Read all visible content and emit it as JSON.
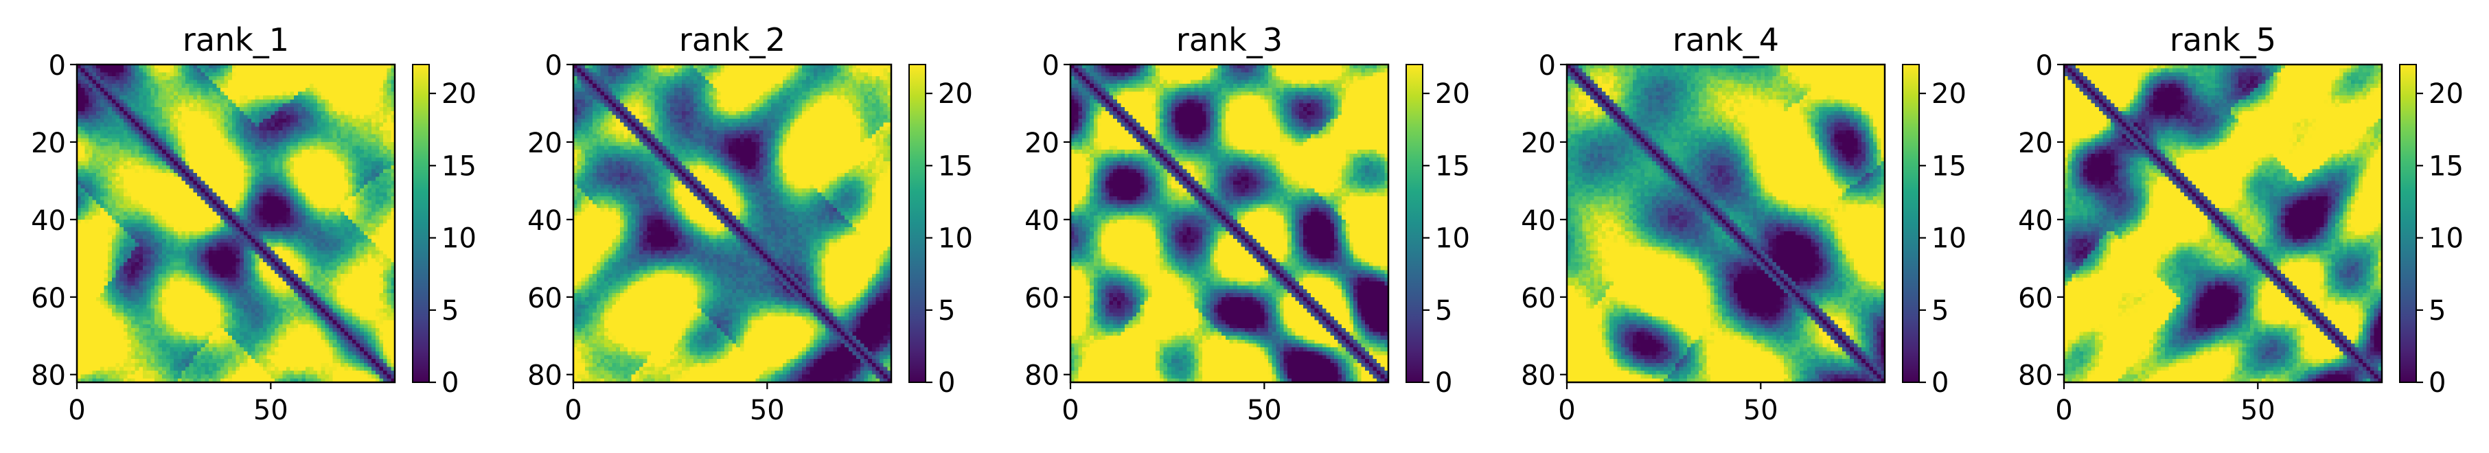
{
  "chart_data": [
    {
      "type": "heatmap",
      "title": "rank_1",
      "matrix_size": 82,
      "xlim": [
        0,
        82
      ],
      "ylim": [
        82,
        0
      ],
      "xticks": [
        0,
        50
      ],
      "yticks": [
        0,
        20,
        40,
        60,
        80
      ],
      "colorbar": {
        "min": 0,
        "max": 22,
        "ticks": [
          0,
          5,
          10,
          15,
          20
        ],
        "colormap": "viridis"
      },
      "grid": false,
      "seed": 11
    },
    {
      "type": "heatmap",
      "title": "rank_2",
      "matrix_size": 82,
      "xlim": [
        0,
        82
      ],
      "ylim": [
        82,
        0
      ],
      "xticks": [
        0,
        50
      ],
      "yticks": [
        0,
        20,
        40,
        60,
        80
      ],
      "colorbar": {
        "min": 0,
        "max": 22,
        "ticks": [
          0,
          5,
          10,
          15,
          20
        ],
        "colormap": "viridis"
      },
      "grid": false,
      "seed": 12
    },
    {
      "type": "heatmap",
      "title": "rank_3",
      "matrix_size": 82,
      "xlim": [
        0,
        82
      ],
      "ylim": [
        82,
        0
      ],
      "xticks": [
        0,
        50
      ],
      "yticks": [
        0,
        20,
        40,
        60,
        80
      ],
      "colorbar": {
        "min": 0,
        "max": 22,
        "ticks": [
          0,
          5,
          10,
          15,
          20
        ],
        "colormap": "viridis"
      },
      "grid": false,
      "seed": 13
    },
    {
      "type": "heatmap",
      "title": "rank_4",
      "matrix_size": 82,
      "xlim": [
        0,
        82
      ],
      "ylim": [
        82,
        0
      ],
      "xticks": [
        0,
        50
      ],
      "yticks": [
        0,
        20,
        40,
        60,
        80
      ],
      "colorbar": {
        "min": 0,
        "max": 22,
        "ticks": [
          0,
          5,
          10,
          15,
          20
        ],
        "colormap": "viridis"
      },
      "grid": false,
      "seed": 14
    },
    {
      "type": "heatmap",
      "title": "rank_5",
      "matrix_size": 82,
      "xlim": [
        0,
        82
      ],
      "ylim": [
        82,
        0
      ],
      "xticks": [
        0,
        50
      ],
      "yticks": [
        0,
        20,
        40,
        60,
        80
      ],
      "colorbar": {
        "min": 0,
        "max": 22,
        "ticks": [
          0,
          5,
          10,
          15,
          20
        ],
        "colormap": "viridis"
      },
      "grid": false,
      "seed": 15
    }
  ]
}
